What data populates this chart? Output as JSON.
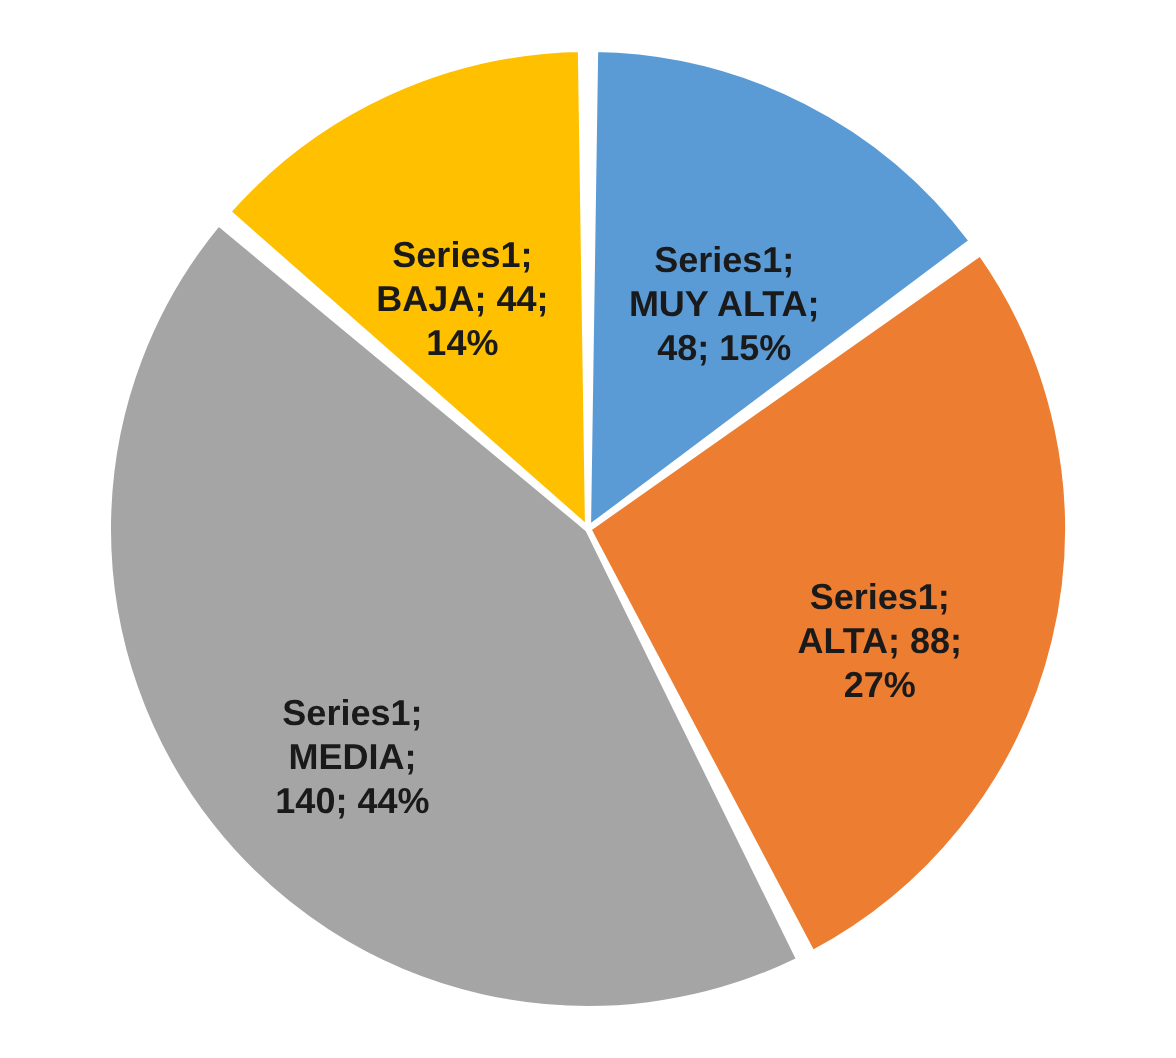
{
  "chart_data": {
    "type": "pie",
    "categories": [
      null,
      null,
      null,
      null
    ],
    "values": [
      48,
      88,
      140,
      44
    ],
    "colors": [
      "#5b9bd5",
      "#ed7d31",
      "#a5a5a5",
      "#ffc000"
    ],
    "value_labels": [
      "Series1; MUY ALTA; 48; 15%",
      "Series1; ALTA; 88; 27%",
      "Series1; MEDIA; 140; 44%",
      "Series1; BAJA; 44; 14%"
    ]
  }
}
